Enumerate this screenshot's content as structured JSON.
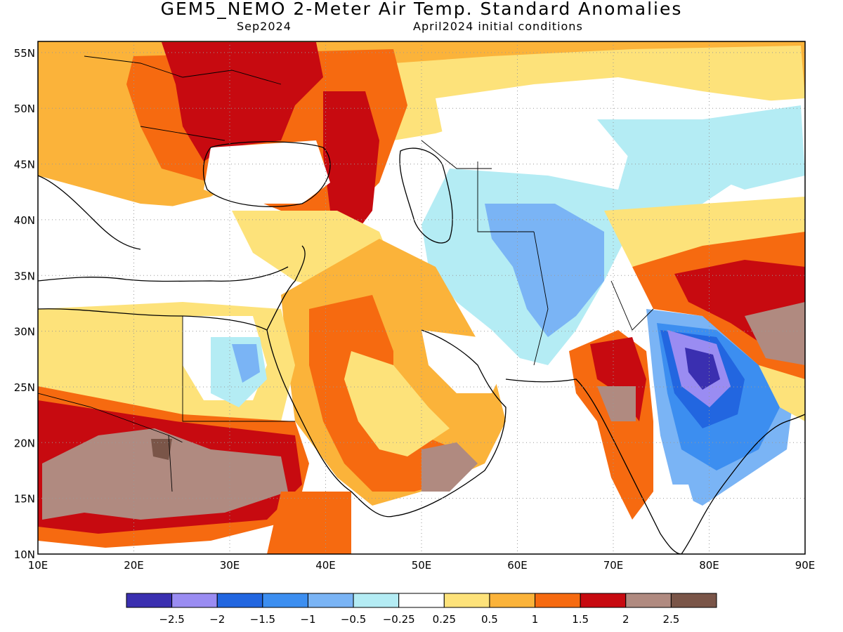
{
  "header": {
    "title": "GEM5_NEMO 2-Meter Air Temp. Standard Anomalies",
    "valid_month": "Sep2024",
    "init": "April2024 initial conditions"
  },
  "axes": {
    "lat_labels": [
      "10N",
      "15N",
      "20N",
      "25N",
      "30N",
      "35N",
      "40N",
      "45N",
      "50N",
      "55N"
    ],
    "lon_labels": [
      "10E",
      "20E",
      "30E",
      "40E",
      "50E",
      "60E",
      "70E",
      "80E",
      "90E"
    ],
    "lon_range": [
      10,
      90
    ],
    "lat_range": [
      10,
      56
    ],
    "grid": "dotted"
  },
  "legend": {
    "colors": [
      "#3a2fb0",
      "#9a8cf2",
      "#2266e0",
      "#3c8ef0",
      "#7ab4f5",
      "#b4ecf4",
      "#ffffff",
      "#fde27a",
      "#fbb33a",
      "#f66a10",
      "#c70a10",
      "#b08a80",
      "#7a5548"
    ],
    "labels": [
      "−2.5",
      "−2",
      "−1.5",
      "−1",
      "−0.5",
      "−0.25",
      "0.25",
      "0.5",
      "1",
      "1.5",
      "2",
      "2.5"
    ]
  }
}
